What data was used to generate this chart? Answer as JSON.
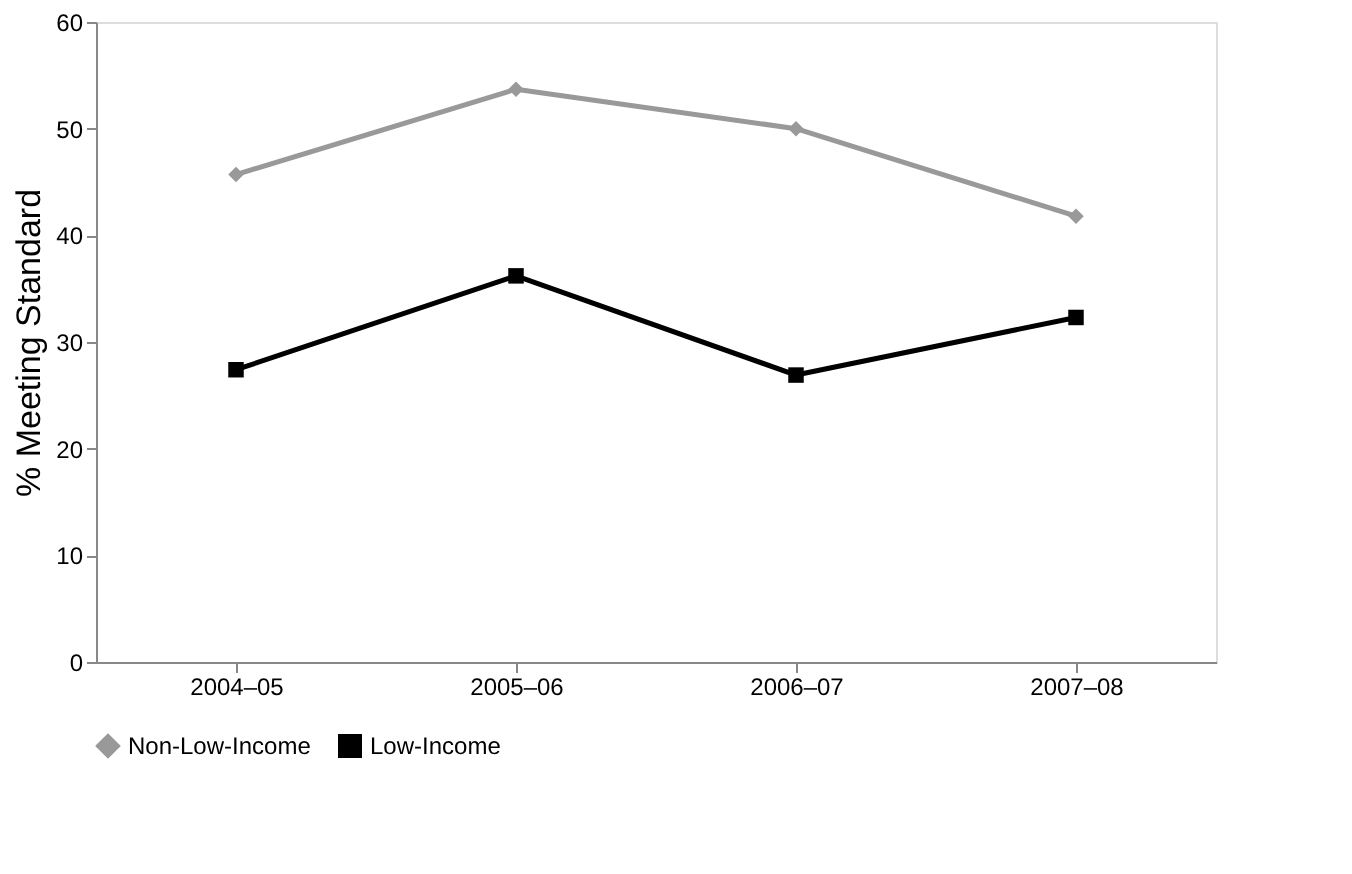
{
  "chart_data": {
    "type": "line",
    "ylabel": "% Meeting Standard",
    "categories": [
      "2004–05",
      "2005–06",
      "2006–07",
      "2007–08"
    ],
    "series": [
      {
        "name": "Non-Low-Income",
        "color": "#999999",
        "marker": "diamond",
        "line_style": "solid",
        "values": [
          45.7,
          53.7,
          50.0,
          41.8
        ]
      },
      {
        "name": "Low-Income",
        "color": "#000000",
        "marker": "square",
        "line_style": "solid",
        "values": [
          27.4,
          36.2,
          26.9,
          32.3
        ]
      }
    ],
    "ylim": [
      0,
      60
    ],
    "yticks": [
      0,
      10,
      20,
      30,
      40,
      50,
      60
    ],
    "grid": false,
    "legend": "bottom"
  }
}
